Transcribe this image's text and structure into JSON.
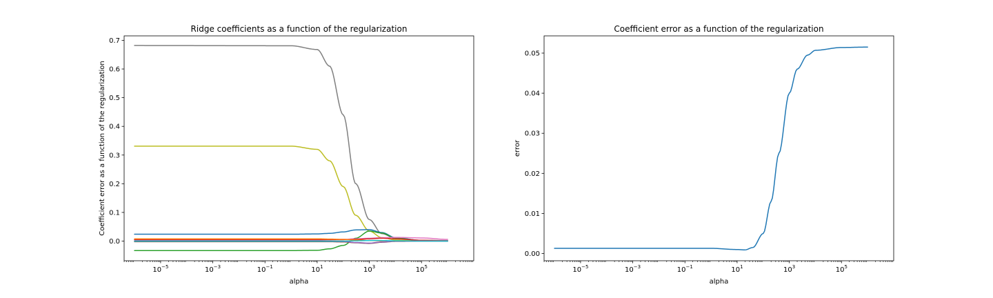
{
  "chart_data": [
    {
      "type": "line",
      "title": "Ridge coefficients as a function of the regularization",
      "xlabel": "alpha",
      "ylabel": "Coefficient error as a function of the regularization",
      "xscale": "log",
      "xlim": [
        4e-07,
        10000000.0
      ],
      "ylim": [
        -0.0685,
        0.7155
      ],
      "xticks": [
        {
          "value": 1e-05,
          "base": "10",
          "exp": "−5"
        },
        {
          "value": 0.001,
          "base": "10",
          "exp": "−3"
        },
        {
          "value": 0.1,
          "base": "10",
          "exp": "−1"
        },
        {
          "value": 10.0,
          "base": "10",
          "exp": "1"
        },
        {
          "value": 1000.0,
          "base": "10",
          "exp": "3"
        },
        {
          "value": 100000.0,
          "base": "10",
          "exp": "5"
        }
      ],
      "yticks": [
        {
          "value": 0.0,
          "label": "0.0"
        },
        {
          "value": 0.1,
          "label": "0.1"
        },
        {
          "value": 0.2,
          "label": "0.2"
        },
        {
          "value": 0.3,
          "label": "0.3"
        },
        {
          "value": 0.4,
          "label": "0.4"
        },
        {
          "value": 0.5,
          "label": "0.5"
        },
        {
          "value": 0.6,
          "label": "0.6"
        },
        {
          "value": 0.7,
          "label": "0.7"
        }
      ],
      "grid": false,
      "x": [
        1e-06,
        1,
        10,
        30,
        100,
        300,
        1000,
        3000,
        10000,
        100000,
        1000000
      ],
      "series": [
        {
          "color": "#7f7f7f",
          "values": [
            0.682,
            0.681,
            0.668,
            0.61,
            0.44,
            0.2,
            0.075,
            0.026,
            0.01,
            0.003,
            0.002
          ]
        },
        {
          "color": "#bcbd22",
          "values": [
            0.331,
            0.331,
            0.32,
            0.28,
            0.19,
            0.09,
            0.035,
            0.012,
            0.004,
            0.001,
            0.0
          ]
        },
        {
          "color": "#1f77b4",
          "values": [
            0.024,
            0.024,
            0.025,
            0.027,
            0.032,
            0.039,
            0.04,
            0.03,
            0.012,
            0.002,
            0.0
          ]
        },
        {
          "color": "#2ca02c",
          "values": [
            -0.033,
            -0.033,
            -0.032,
            -0.027,
            -0.015,
            0.01,
            0.035,
            0.028,
            0.01,
            0.002,
            0.0
          ]
        },
        {
          "color": "#e377c2",
          "values": [
            0.005,
            0.005,
            0.005,
            0.005,
            0.006,
            0.008,
            0.01,
            0.012,
            0.013,
            0.011,
            0.006
          ]
        },
        {
          "color": "#d62728",
          "values": [
            0.005,
            0.005,
            0.005,
            0.005,
            0.005,
            0.006,
            0.008,
            0.01,
            0.008,
            0.003,
            0.001
          ]
        },
        {
          "color": "#ff7f0e",
          "values": [
            0.008,
            0.008,
            0.008,
            0.007,
            0.006,
            0.004,
            0.002,
            0.001,
            0.0,
            0.0,
            0.0
          ]
        },
        {
          "color": "#8c564b",
          "values": [
            -0.002,
            -0.002,
            -0.002,
            -0.002,
            -0.003,
            -0.006,
            -0.008,
            -0.004,
            -0.001,
            0.0,
            0.0
          ]
        },
        {
          "color": "#9467bd",
          "values": [
            0.001,
            0.001,
            0.001,
            0.0,
            -0.001,
            -0.005,
            -0.007,
            -0.003,
            0.0,
            0.0,
            0.0
          ]
        },
        {
          "color": "#17becf",
          "values": [
            0.0,
            0.0,
            0.0,
            0.0,
            0.0,
            0.001,
            0.002,
            0.002,
            0.001,
            0.0,
            0.0
          ]
        }
      ]
    },
    {
      "type": "line",
      "title": "Coefficient error as a function of the regularization",
      "xlabel": "alpha",
      "ylabel": "error",
      "xscale": "log",
      "xlim": [
        4e-07,
        10000000.0
      ],
      "ylim": [
        -0.0018,
        0.0543
      ],
      "xticks": [
        {
          "value": 1e-05,
          "base": "10",
          "exp": "−5"
        },
        {
          "value": 0.001,
          "base": "10",
          "exp": "−3"
        },
        {
          "value": 0.1,
          "base": "10",
          "exp": "−1"
        },
        {
          "value": 10.0,
          "base": "10",
          "exp": "1"
        },
        {
          "value": 1000.0,
          "base": "10",
          "exp": "3"
        },
        {
          "value": 100000.0,
          "base": "10",
          "exp": "5"
        }
      ],
      "yticks": [
        {
          "value": 0.0,
          "label": "0.00"
        },
        {
          "value": 0.01,
          "label": "0.01"
        },
        {
          "value": 0.02,
          "label": "0.02"
        },
        {
          "value": 0.03,
          "label": "0.03"
        },
        {
          "value": 0.04,
          "label": "0.04"
        },
        {
          "value": 0.05,
          "label": "0.05"
        }
      ],
      "grid": false,
      "x": [
        1e-06,
        1,
        10,
        20,
        40,
        100,
        200,
        400,
        1000,
        2000,
        5000,
        10000,
        100000,
        1000000
      ],
      "series": [
        {
          "color": "#1f77b4",
          "values": [
            0.0013,
            0.0013,
            0.001,
            0.0009,
            0.0015,
            0.005,
            0.013,
            0.025,
            0.04,
            0.046,
            0.0495,
            0.0507,
            0.0514,
            0.0515
          ]
        }
      ]
    }
  ]
}
